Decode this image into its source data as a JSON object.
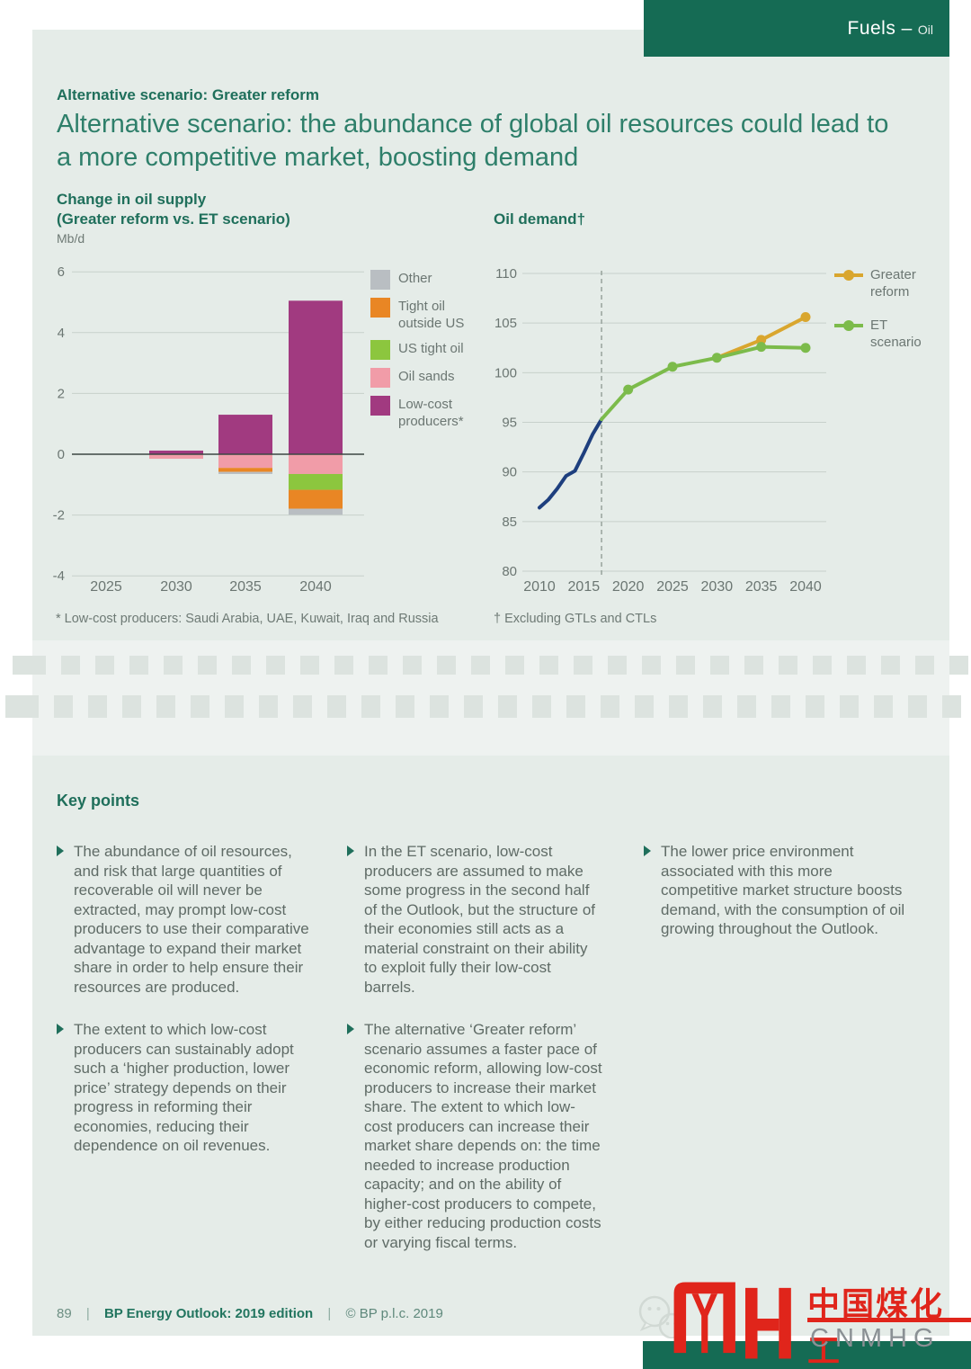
{
  "page": {
    "tab": {
      "main": "Fuels –",
      "sub": "Oil"
    },
    "eyebrow": "Alternative scenario: Greater reform",
    "title": "Alternative scenario: the abundance of global oil resources could lead to a more competitive market, boosting demand"
  },
  "chart_data": [
    {
      "type": "bar",
      "title": "Change in oil supply",
      "subtitle": "(Greater reform vs. ET scenario)",
      "unit": "Mb/d",
      "categories": [
        "2025",
        "2030",
        "2035",
        "2040"
      ],
      "series": [
        {
          "name": "Other",
          "color": "#b9bec2",
          "values": [
            0,
            0,
            -0.07,
            -0.2
          ]
        },
        {
          "name": "Tight oil outside US",
          "color": "#e98624",
          "values": [
            0,
            0,
            -0.13,
            -0.62
          ]
        },
        {
          "name": "US tight oil",
          "color": "#8cc63e",
          "values": [
            0,
            0,
            0,
            -0.52
          ]
        },
        {
          "name": "Oil sands",
          "color": "#f19ca8",
          "values": [
            0,
            -0.15,
            -0.45,
            -0.65
          ]
        },
        {
          "name": "Low-cost producers*",
          "color": "#a13a80",
          "values": [
            0,
            0.12,
            1.3,
            5.05
          ]
        }
      ],
      "ylim": [
        -4,
        6
      ],
      "yticks": [
        6,
        4,
        2,
        0,
        -2,
        -4
      ],
      "grid": true,
      "legend_position": "right",
      "footnote": "* Low-cost producers: Saudi Arabia, UAE, Kuwait, Iraq and Russia"
    },
    {
      "type": "line",
      "title": "Oil demand†",
      "ylim": [
        80,
        110
      ],
      "yticks": [
        110,
        105,
        100,
        95,
        90,
        85,
        80
      ],
      "xticks": [
        2010,
        2015,
        2020,
        2025,
        2030,
        2035,
        2040
      ],
      "xlim": [
        2010,
        2040
      ],
      "divider_year": 2017,
      "grid": true,
      "legend_position": "right",
      "series": [
        {
          "name": "",
          "id": "history",
          "color": "#1e3f7e",
          "markers": false,
          "x": [
            2010,
            2011,
            2012,
            2013,
            2014,
            2015,
            2016,
            2017
          ],
          "y": [
            86.4,
            87.2,
            88.3,
            89.6,
            90.1,
            91.9,
            93.8,
            95.3
          ]
        },
        {
          "name": "Greater reform",
          "color": "#d9a62e",
          "markers": true,
          "skip_first_marker": true,
          "x": [
            2030,
            2035,
            2040
          ],
          "y": [
            101.5,
            103.3,
            105.6
          ]
        },
        {
          "name": "ET scenario",
          "color": "#7cbb4b",
          "markers": true,
          "skip_first_marker": true,
          "x": [
            2017,
            2020,
            2025,
            2030,
            2035,
            2040
          ],
          "y": [
            95.3,
            98.3,
            100.6,
            101.5,
            102.6,
            102.5
          ]
        }
      ],
      "footnote": "† Excluding GTLs and CTLs"
    }
  ],
  "key_points": {
    "heading": "Key points",
    "columns": [
      {
        "items": [
          "The abundance of oil resources, and risk that large quantities of recoverable oil will never be extracted, may prompt low-cost producers to use their comparative advantage to expand their market share in order to help ensure their resources are produced.",
          "The extent to which low-cost producers can sustainably adopt such a ‘higher production, lower price’ strategy depends on their progress in reforming their economies, reducing their dependence on oil revenues."
        ]
      },
      {
        "items": [
          "In the ET scenario, low-cost producers are assumed to make some progress in the second half of the Outlook, but the structure of their economies still acts as a material constraint on their ability to exploit fully their low-cost barrels.",
          "The alternative ‘Greater reform’ scenario assumes a faster pace of economic reform, allowing low-cost producers to increase their market share. The extent to which low-cost producers can increase their market share depends on: the time needed to increase production capacity; and on the ability of higher-cost producers to compete, by either reducing production costs or varying fiscal terms."
        ]
      },
      {
        "items": [
          "The lower price environment associated with this more competitive market structure boosts demand, with the consumption of oil growing throughout the Outlook."
        ]
      }
    ]
  },
  "footer": {
    "page_number": "89",
    "separator": "|",
    "edition": "BP Energy Outlook: 2019 edition",
    "copyright": "© BP p.l.c. 2019"
  },
  "branding": {
    "brand_cn": "中国煤化工",
    "brand_en": "CNMHG"
  },
  "colors": {
    "brand_green_dark": "#156b54",
    "heading_green": "#2e7f6a",
    "accent_green": "#1f6f5b",
    "background_mint": "#e5ece8",
    "text_gray": "#5f6b66",
    "logo_red": "#e0251b",
    "history_blue": "#1e3f7e",
    "greater_reform_gold": "#d9a62e",
    "et_scenario_green": "#7cbb4b"
  }
}
